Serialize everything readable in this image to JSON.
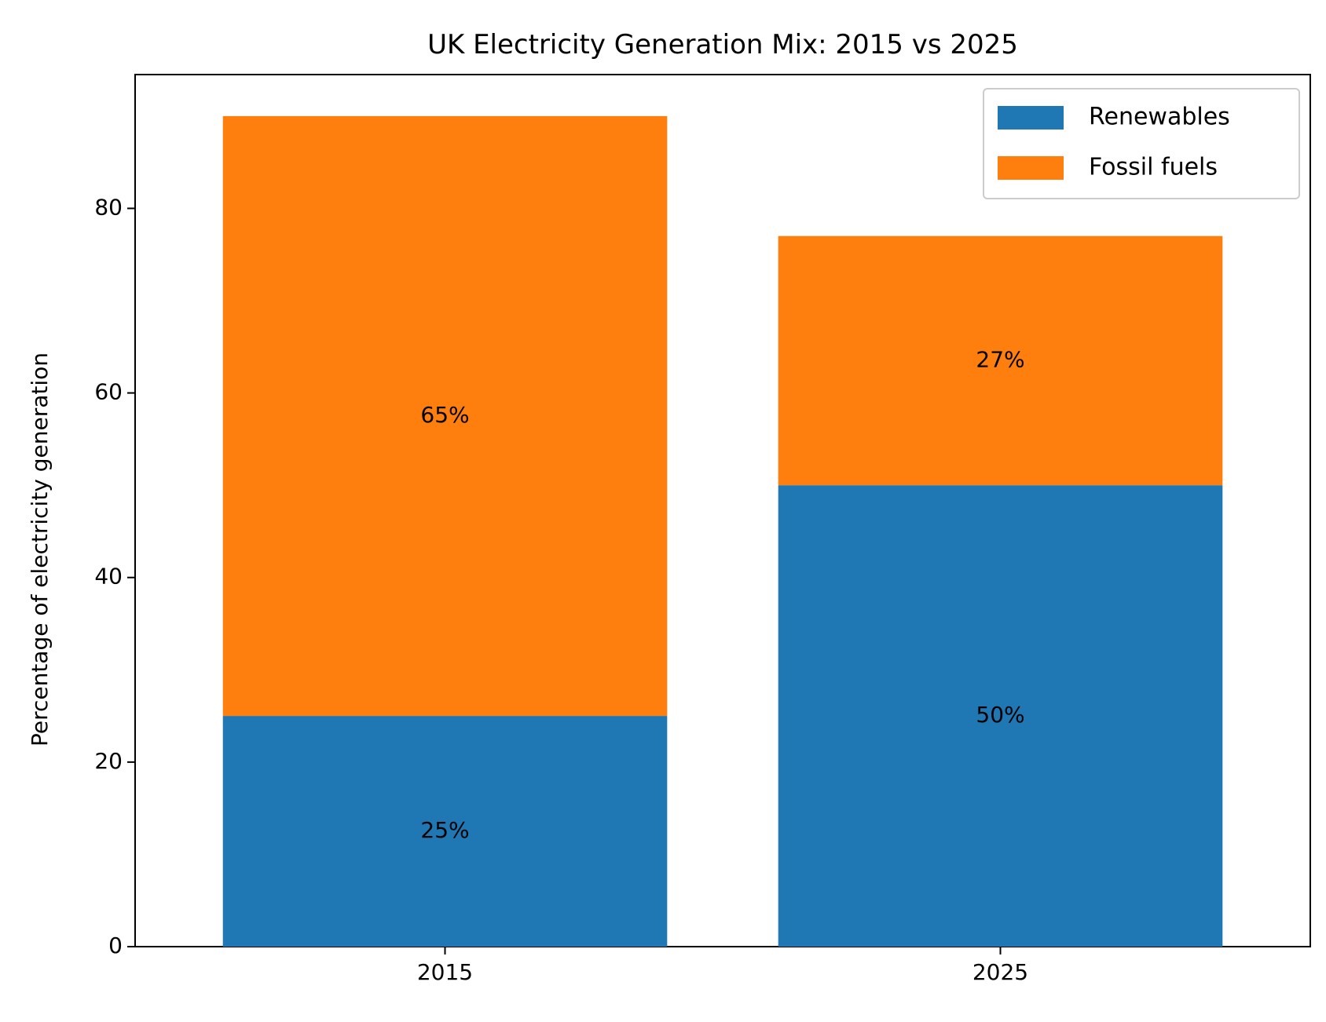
{
  "chart_data": {
    "type": "bar",
    "stacked": true,
    "title": "UK Electricity Generation Mix: 2015 vs 2025",
    "xlabel": "",
    "ylabel": "Percentage of electricity generation",
    "categories": [
      "2015",
      "2025"
    ],
    "series": [
      {
        "name": "Renewables",
        "values": [
          25,
          50
        ],
        "labels": [
          "25%",
          "50%"
        ],
        "color": "#1f77b4"
      },
      {
        "name": "Fossil fuels",
        "values": [
          65,
          27
        ],
        "labels": [
          "65%",
          "27%"
        ],
        "color": "#ff7f0e"
      }
    ],
    "ylim": [
      0,
      94.5
    ],
    "yticks": [
      0,
      20,
      40,
      60,
      80
    ],
    "grid": false,
    "legend_position": "top-right"
  }
}
